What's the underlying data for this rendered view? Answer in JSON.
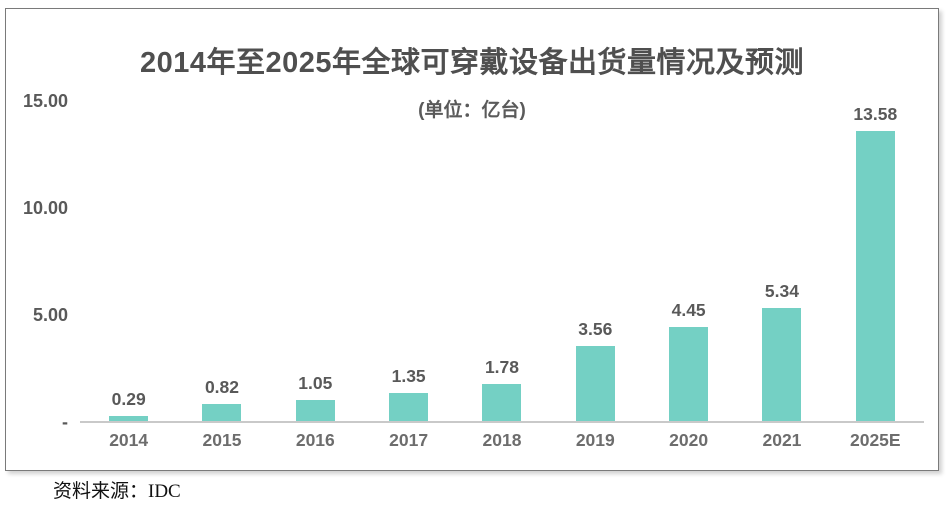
{
  "title": "2014年至2025年全球可穿戴设备出货量情况及预测",
  "subtitle": "(单位：亿台)",
  "source": "资料来源：IDC",
  "colors": {
    "bar": "#74D0C4",
    "title_text": "#4f4f4f",
    "value_text": "#595959",
    "axis_text": "#6d6d6d",
    "axis_line": "#c9c9c9",
    "box_border": "#7a7a7a"
  },
  "chart_data": {
    "type": "bar",
    "title": "2014年至2025年全球可穿戴设备出货量情况及预测",
    "subtitle": "(单位：亿台)",
    "unit": "亿台",
    "categories": [
      "2014",
      "2015",
      "2016",
      "2017",
      "2018",
      "2019",
      "2020",
      "2021",
      "2025E"
    ],
    "values": [
      0.29,
      0.82,
      1.05,
      1.35,
      1.78,
      3.56,
      4.45,
      5.34,
      13.58
    ],
    "value_labels": [
      "0.29",
      "0.82",
      "1.05",
      "1.35",
      "1.78",
      "3.56",
      "4.45",
      "5.34",
      "13.58"
    ],
    "xlabel": "",
    "ylabel": "",
    "ylim": [
      0,
      15
    ],
    "yticks": [
      {
        "value": 15,
        "label": "15.00"
      },
      {
        "value": 10,
        "label": "10.00"
      },
      {
        "value": 5,
        "label": "5.00"
      },
      {
        "value": 0,
        "label": "-"
      }
    ],
    "grid": false,
    "legend_position": "none",
    "source": "资料来源：IDC"
  }
}
